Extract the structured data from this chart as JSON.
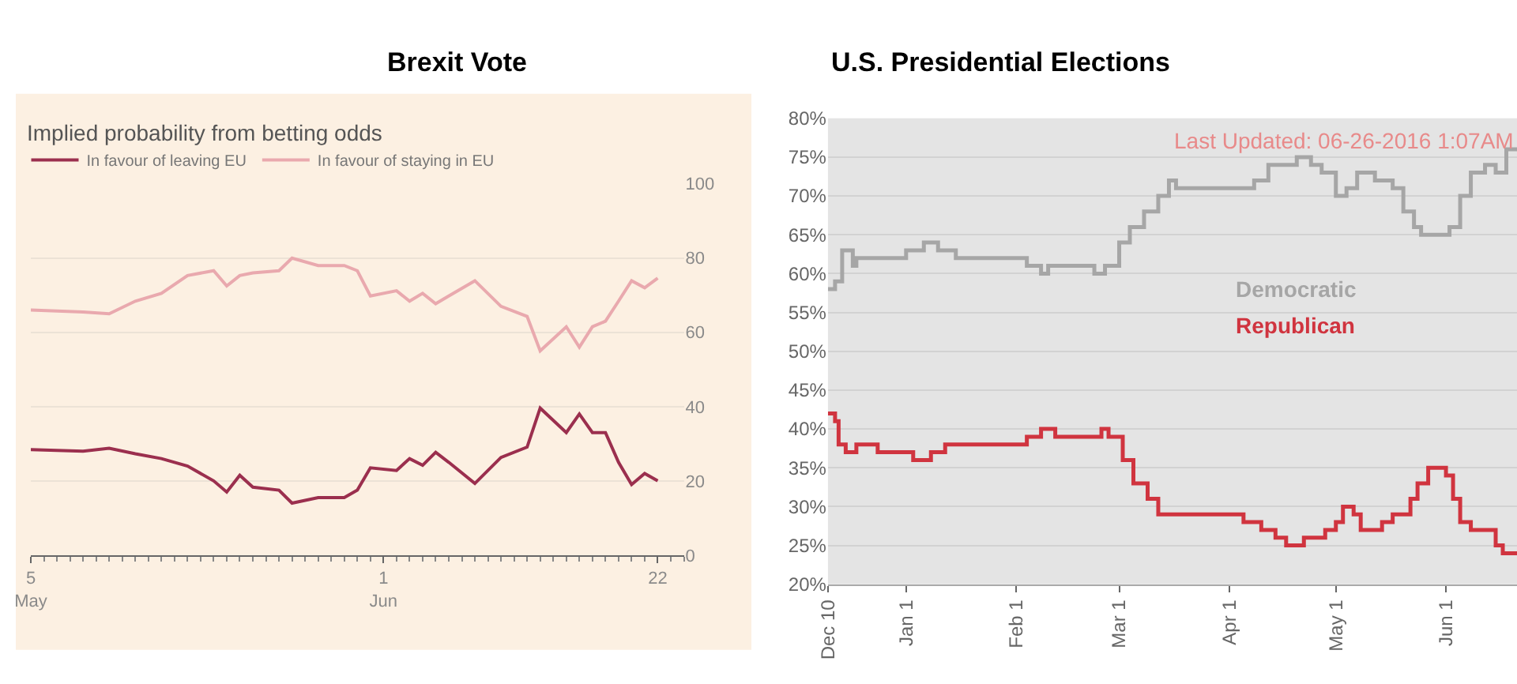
{
  "chart_data": [
    {
      "type": "line",
      "title": "Brexit Vote",
      "subtitle": "Implied probability from betting odds",
      "legend": "top left",
      "grid": "y",
      "xlim": [
        "--05-05",
        "--06-24"
      ],
      "xticks": [
        {
          "value": "--05-05",
          "label": "5\nMay"
        },
        {
          "value": "--06-01",
          "label": "1\nJun"
        },
        {
          "value": "--06-22",
          "label": "22"
        }
      ],
      "ylim": [
        0,
        100
      ],
      "yticks": [
        0,
        20,
        40,
        60,
        80,
        100
      ],
      "series": [
        {
          "name": "In favour of leaving EU",
          "color": "#9b2f4e",
          "x": [
            "--05-05",
            "--05-09",
            "--05-11",
            "--05-13",
            "--05-15",
            "--05-17",
            "--05-19",
            "--05-20",
            "--05-21",
            "--05-22",
            "--05-24",
            "--05-25",
            "--05-27",
            "--05-29",
            "--05-30",
            "--05-31",
            "--06-02",
            "--06-03",
            "--06-04",
            "--06-05",
            "--06-06",
            "--06-08",
            "--06-10",
            "--06-12",
            "--06-13",
            "--06-15",
            "--06-16",
            "--06-17",
            "--06-18",
            "--06-19",
            "--06-20",
            "--06-21",
            "--06-22"
          ],
          "values": [
            28.4,
            28,
            28.8,
            27.3,
            26,
            24,
            20,
            17,
            21.5,
            18.3,
            17.5,
            14,
            15.5,
            15.5,
            17.5,
            23.5,
            22.8,
            26,
            24.2,
            27.7,
            25,
            19.3,
            26.3,
            29.1,
            39.6,
            33,
            38,
            33,
            33,
            25,
            19,
            22,
            20
          ]
        },
        {
          "name": "In favour of staying in EU",
          "color": "#e9a9ae",
          "x": [
            "--05-05",
            "--05-09",
            "--05-11",
            "--05-13",
            "--05-15",
            "--05-17",
            "--05-19",
            "--05-20",
            "--05-21",
            "--05-22",
            "--05-24",
            "--05-25",
            "--05-27",
            "--05-29",
            "--05-30",
            "--05-31",
            "--06-02",
            "--06-03",
            "--06-04",
            "--06-05",
            "--06-06",
            "--06-08",
            "--06-10",
            "--06-12",
            "--06-13",
            "--06-15",
            "--06-16",
            "--06-17",
            "--06-18",
            "--06-19",
            "--06-20",
            "--06-21",
            "--06-22"
          ],
          "values": [
            66,
            65.5,
            65,
            68.4,
            70.5,
            75.3,
            76.6,
            72.5,
            75.3,
            76,
            76.6,
            80,
            78,
            78,
            76.6,
            69.8,
            71.2,
            68.4,
            70.5,
            67.7,
            69.8,
            73.9,
            67,
            64.3,
            55,
            61.5,
            56,
            61.5,
            63,
            68.4,
            73.9,
            72,
            74.6
          ]
        }
      ]
    },
    {
      "type": "step",
      "title": "U.S. Presidential Elections",
      "annotations": [
        "Last Updated: 06-26-2016 1:07AM"
      ],
      "grid": "y",
      "xlim": [
        "2015-12-10",
        "2016-06-21"
      ],
      "xticks": [
        {
          "value": "2015-12-10",
          "label": "Dec 10"
        },
        {
          "value": "2016-01-01",
          "label": "Jan 1"
        },
        {
          "value": "2016-02-01",
          "label": "Feb 1"
        },
        {
          "value": "2016-03-01",
          "label": "Mar 1"
        },
        {
          "value": "2016-04-01",
          "label": "Apr 1"
        },
        {
          "value": "2016-05-01",
          "label": "May 1"
        },
        {
          "value": "2016-06-01",
          "label": "Jun 1"
        }
      ],
      "ylim": [
        20,
        80
      ],
      "yticks": [
        {
          "value": 20,
          "label": "20%"
        },
        {
          "value": 25,
          "label": "25%"
        },
        {
          "value": 30,
          "label": "30%"
        },
        {
          "value": 35,
          "label": "35%"
        },
        {
          "value": 40,
          "label": "40%"
        },
        {
          "value": 45,
          "label": "45%"
        },
        {
          "value": 50,
          "label": "50%"
        },
        {
          "value": 55,
          "label": "55%"
        },
        {
          "value": 60,
          "label": "60%"
        },
        {
          "value": 65,
          "label": "65%"
        },
        {
          "value": 70,
          "label": "70%"
        },
        {
          "value": 75,
          "label": "75%"
        },
        {
          "value": 80,
          "label": "80%"
        }
      ],
      "series": [
        {
          "name": "Democratic",
          "color": "#a6a6a6",
          "x": [
            "2015-12-10",
            "2015-12-12",
            "2015-12-14",
            "2015-12-17",
            "2015-12-18",
            "2016-01-01",
            "2016-01-06",
            "2016-01-10",
            "2016-01-15",
            "2016-02-04",
            "2016-02-08",
            "2016-02-10",
            "2016-02-23",
            "2016-02-26",
            "2016-03-01",
            "2016-03-04",
            "2016-03-08",
            "2016-03-12",
            "2016-03-15",
            "2016-03-17",
            "2016-04-08",
            "2016-04-12",
            "2016-04-20",
            "2016-04-24",
            "2016-04-27",
            "2016-05-01",
            "2016-05-04",
            "2016-05-07",
            "2016-05-12",
            "2016-05-17",
            "2016-05-20",
            "2016-05-23",
            "2016-05-25",
            "2016-06-02",
            "2016-06-05",
            "2016-06-08",
            "2016-06-12",
            "2016-06-15",
            "2016-06-18",
            "2016-06-21"
          ],
          "values": [
            58,
            59,
            63,
            61,
            62,
            63,
            64,
            63,
            62,
            61,
            60,
            61,
            60,
            61,
            64,
            66,
            68,
            70,
            72,
            71,
            72,
            74,
            75,
            74,
            73,
            70,
            71,
            73,
            72,
            71,
            68,
            66,
            65,
            66,
            70,
            73,
            74,
            73,
            76,
            76
          ]
        },
        {
          "name": "Republican",
          "color": "#d0343f",
          "x": [
            "2015-12-10",
            "2015-12-12",
            "2015-12-13",
            "2015-12-15",
            "2015-12-18",
            "2015-12-24",
            "2016-01-03",
            "2016-01-08",
            "2016-01-12",
            "2016-02-04",
            "2016-02-08",
            "2016-02-12",
            "2016-02-25",
            "2016-02-27",
            "2016-03-02",
            "2016-03-05",
            "2016-03-09",
            "2016-03-12",
            "2016-04-05",
            "2016-04-10",
            "2016-04-14",
            "2016-04-17",
            "2016-04-22",
            "2016-04-28",
            "2016-05-01",
            "2016-05-03",
            "2016-05-06",
            "2016-05-08",
            "2016-05-14",
            "2016-05-17",
            "2016-05-22",
            "2016-05-24",
            "2016-05-27",
            "2016-06-01",
            "2016-06-03",
            "2016-06-05",
            "2016-06-08",
            "2016-06-15",
            "2016-06-17",
            "2016-06-21"
          ],
          "values": [
            42,
            41,
            38,
            37,
            38,
            37,
            36,
            37,
            38,
            39,
            40,
            39,
            40,
            39,
            36,
            33,
            31,
            29,
            28,
            27,
            26,
            25,
            26,
            27,
            28,
            30,
            29,
            27,
            28,
            29,
            31,
            33,
            35,
            34,
            31,
            28,
            27,
            25,
            24,
            24
          ]
        }
      ]
    }
  ]
}
